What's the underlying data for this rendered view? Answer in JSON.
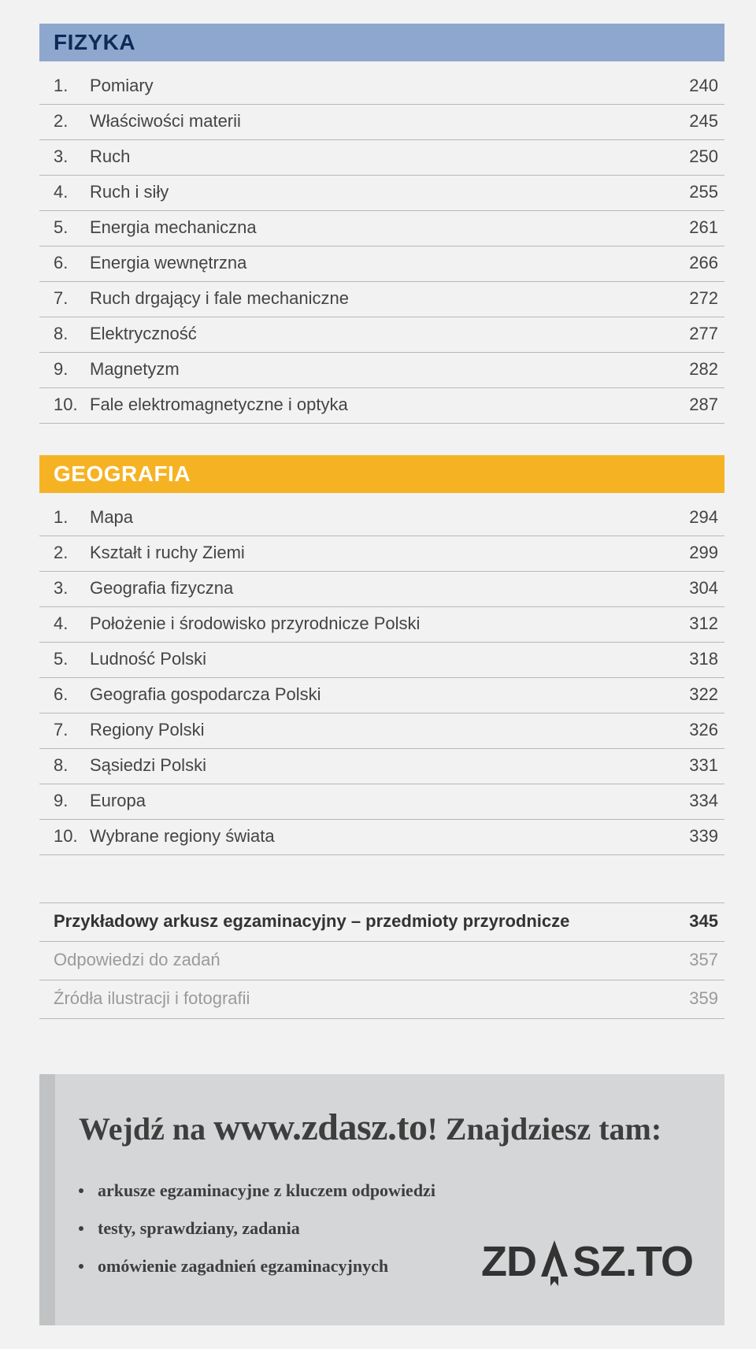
{
  "sections": [
    {
      "title": "FIZYKA",
      "bg_color": "#8ea7cf",
      "text_color": "#0e2a57",
      "items": [
        {
          "num": "1.",
          "label": "Pomiary",
          "page": "240"
        },
        {
          "num": "2.",
          "label": "Właściwości materii",
          "page": "245"
        },
        {
          "num": "3.",
          "label": "Ruch",
          "page": "250"
        },
        {
          "num": "4.",
          "label": "Ruch i siły",
          "page": "255"
        },
        {
          "num": "5.",
          "label": "Energia mechaniczna",
          "page": "261"
        },
        {
          "num": "6.",
          "label": "Energia wewnętrzna",
          "page": "266"
        },
        {
          "num": "7.",
          "label": "Ruch drgający i fale mechaniczne",
          "page": "272"
        },
        {
          "num": "8.",
          "label": "Elektryczność",
          "page": "277"
        },
        {
          "num": "9.",
          "label": "Magnetyzm",
          "page": "282"
        },
        {
          "num": "10.",
          "label": "Fale elektromagnetyczne i optyka",
          "page": "287"
        }
      ]
    },
    {
      "title": "GEOGRAFIA",
      "bg_color": "#f5b324",
      "text_color": "#ffffff",
      "items": [
        {
          "num": "1.",
          "label": "Mapa",
          "page": "294"
        },
        {
          "num": "2.",
          "label": "Kształt i ruchy Ziemi",
          "page": "299"
        },
        {
          "num": "3.",
          "label": "Geografia fizyczna",
          "page": "304"
        },
        {
          "num": "4.",
          "label": "Położenie i środowisko przyrodnicze Polski",
          "page": "312"
        },
        {
          "num": "5.",
          "label": "Ludność Polski",
          "page": "318"
        },
        {
          "num": "6.",
          "label": "Geografia gospodarcza Polski",
          "page": "322"
        },
        {
          "num": "7.",
          "label": "Regiony Polski",
          "page": "326"
        },
        {
          "num": "8.",
          "label": "Sąsiedzi Polski",
          "page": "331"
        },
        {
          "num": "9.",
          "label": "Europa",
          "page": "334"
        },
        {
          "num": "10.",
          "label": "Wybrane regiony świata",
          "page": "339"
        }
      ]
    }
  ],
  "appendix": [
    {
      "label": "Przykładowy arkusz egzaminacyjny – przedmioty przyrodnicze",
      "page": "345",
      "style": "bold"
    },
    {
      "label": "Odpowiedzi do zadań",
      "page": "357",
      "style": "muted"
    },
    {
      "label": "Źródła ilustracji i fotografii",
      "page": "359",
      "style": "muted"
    }
  ],
  "promo": {
    "prefix": "Wejdź na ",
    "url": "www.zdasz.to",
    "suffix": "! Znajdziesz tam:",
    "bullets": [
      "arkusze egzaminacyjne z kluczem odpowiedzi",
      "testy, sprawdziany, zadania",
      "omówienie zagadnień egzaminacyjnych"
    ],
    "brand_left": "ZD",
    "brand_right": "SZ.TO"
  }
}
